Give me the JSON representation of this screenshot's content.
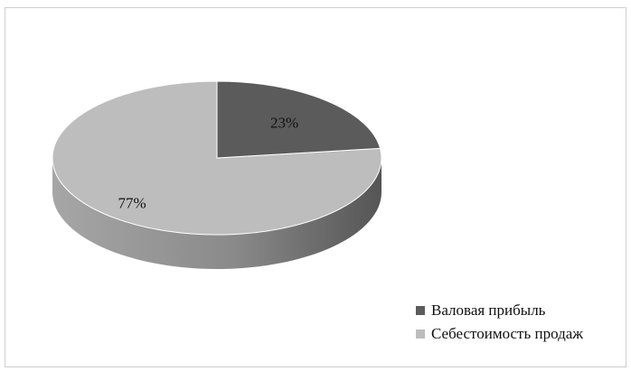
{
  "chart_data": {
    "type": "pie",
    "style": "3d",
    "categories": [
      "Валовая прибыль",
      "Себестоимость продаж"
    ],
    "values": [
      23,
      77
    ],
    "labels": [
      "23%",
      "77%"
    ],
    "legend_position": "bottom-right",
    "colors": {
      "gross_profit_top": "#5b5b5b",
      "gross_profit_side": "#454545",
      "cost_top": "#bdbdbd",
      "cost_side_light": "#a9a9a9",
      "cost_side_dark": "#616161"
    }
  }
}
